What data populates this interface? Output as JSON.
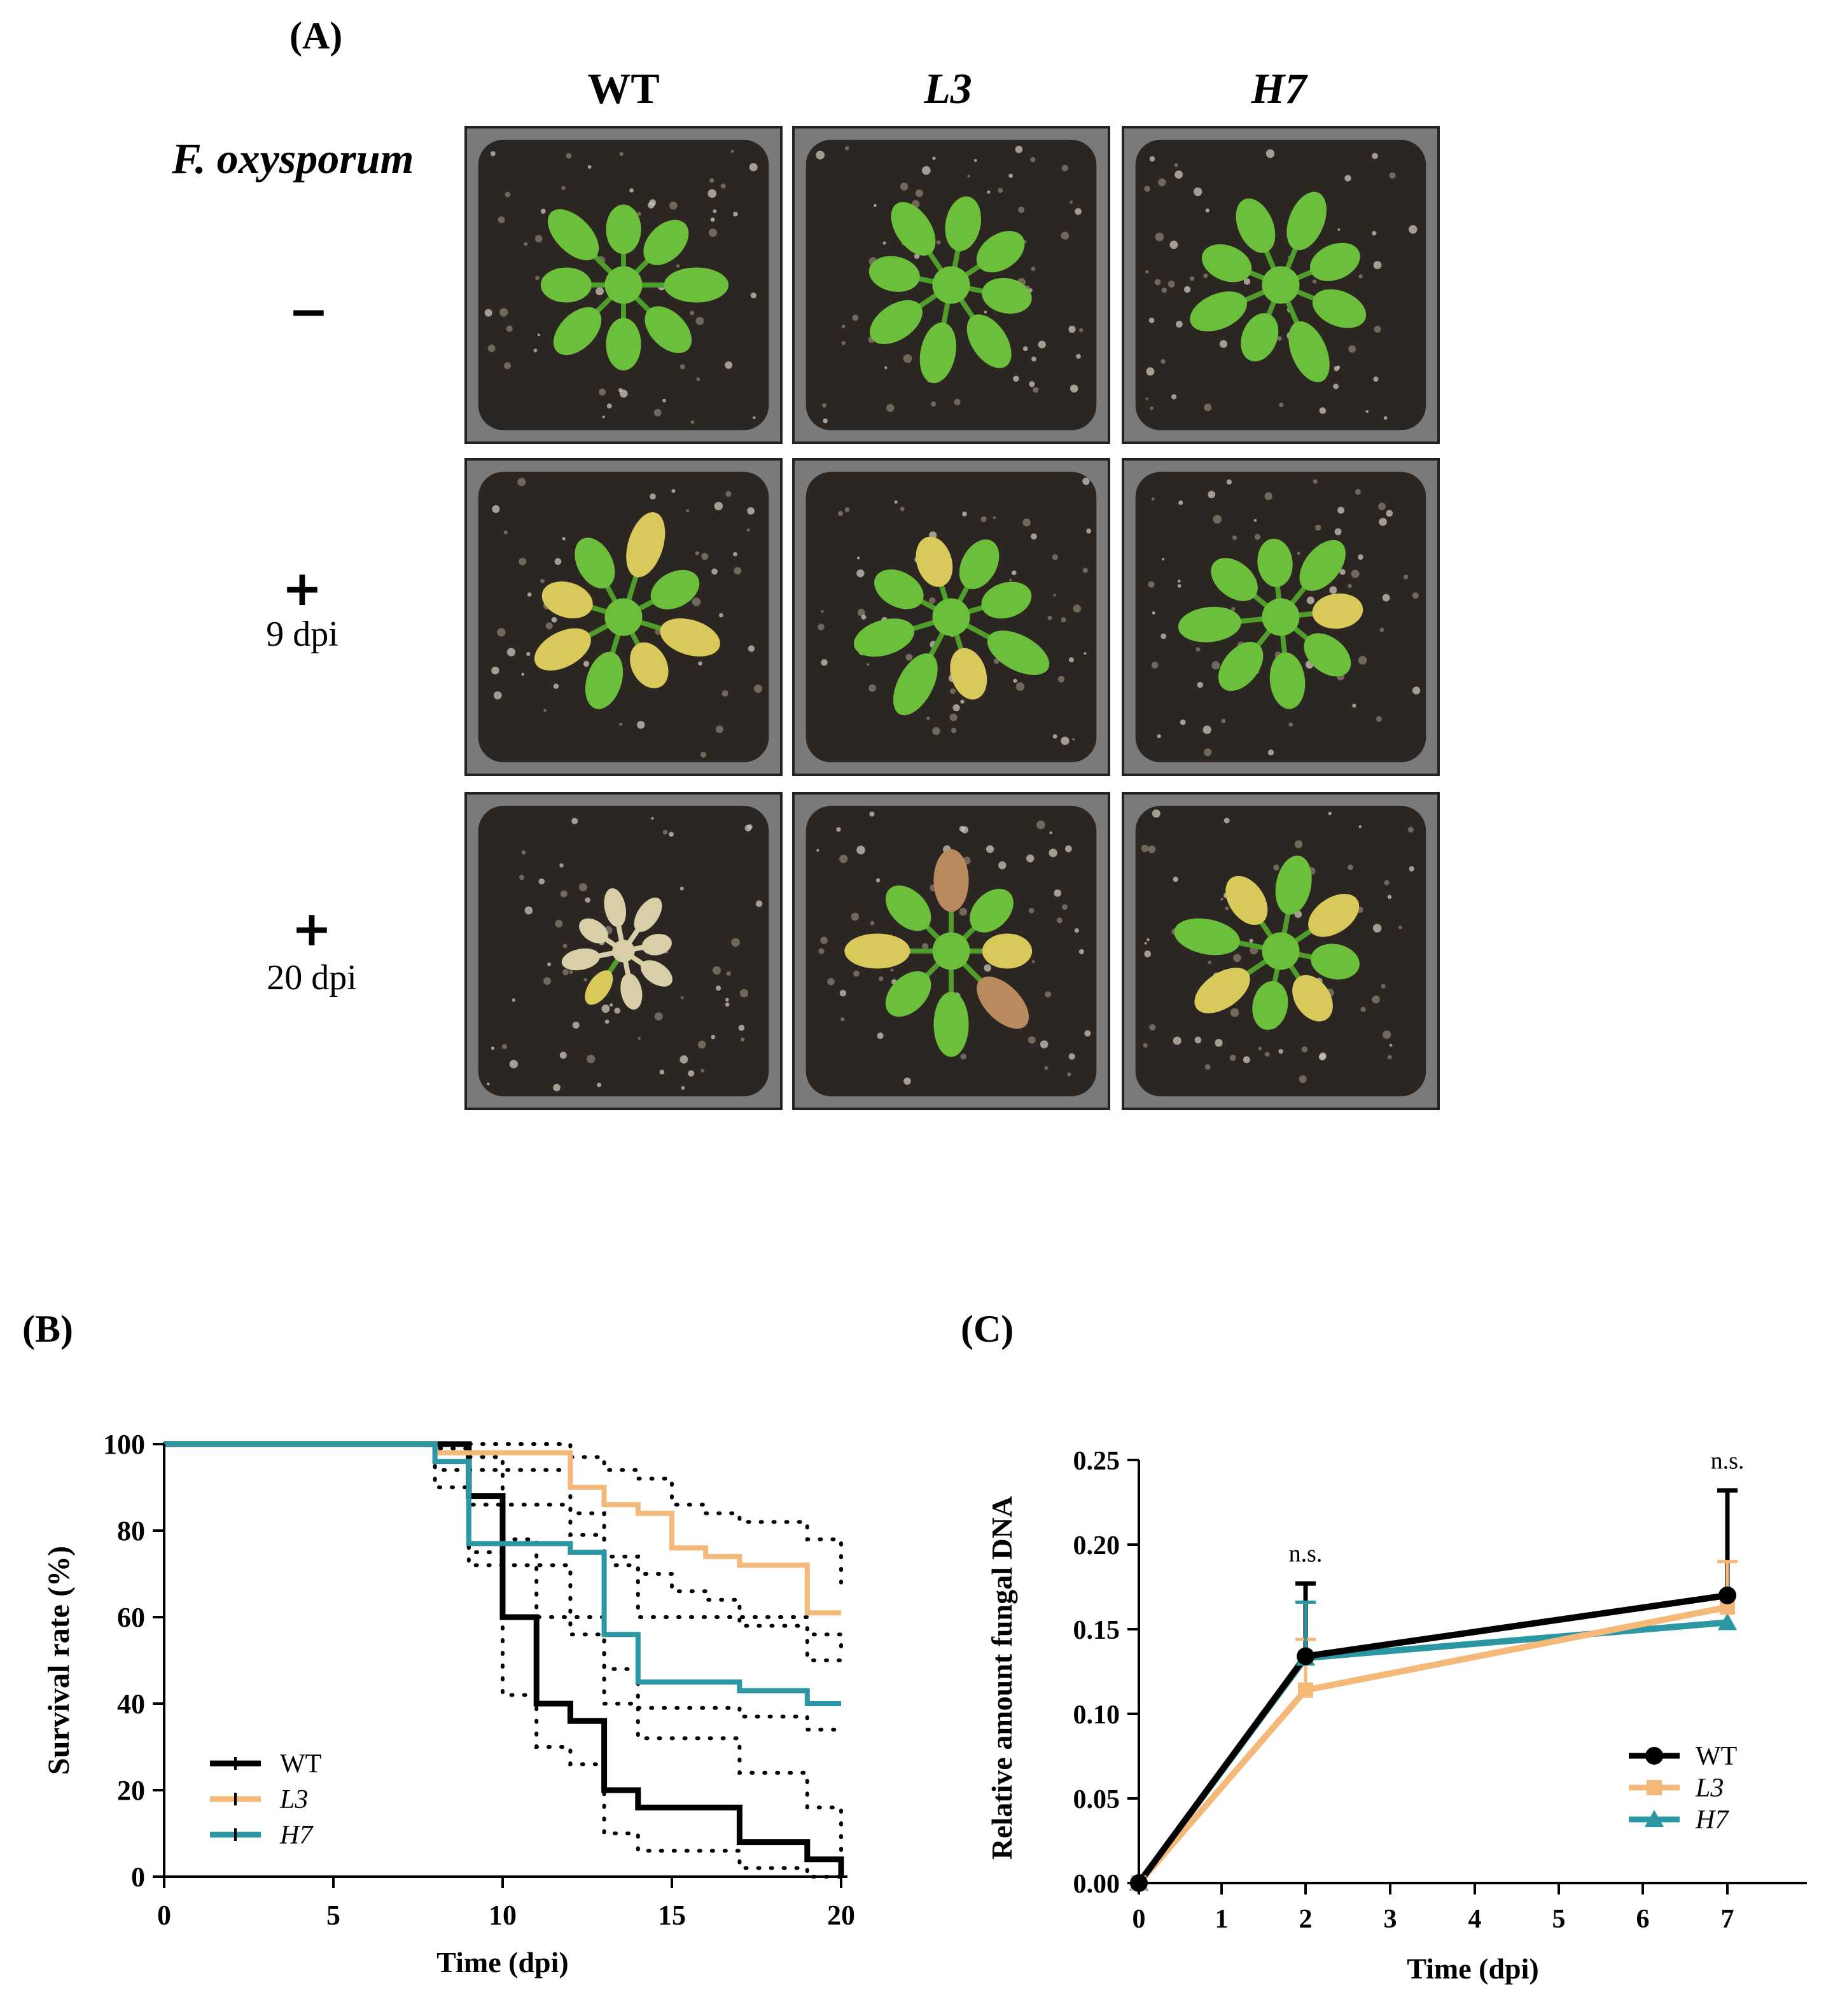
{
  "panel_a": {
    "label": "(A)",
    "columns": [
      "WT",
      "L3",
      "H7"
    ],
    "row_header": "F. oxysporum",
    "rows": [
      {
        "sign": "−",
        "timepoint": ""
      },
      {
        "sign": "+",
        "timepoint": "9 dpi"
      },
      {
        "sign": "+",
        "timepoint": "20 dpi"
      }
    ],
    "photo_colors": {
      "soil": "#2b2622",
      "tray": "#7a7a7a",
      "healthy_leaf": "#6cbf3a",
      "healthy_leaf_dark": "#4f9d2a",
      "chlorotic_leaf": "#d8c95a",
      "dead_leaf": "#d8cfa8",
      "reddish_leaf": "#b88a5e"
    }
  },
  "panel_b": {
    "label": "(B)",
    "chart_data": {
      "type": "line",
      "style": "kaplan-meier step survival curves with dotted 95% confidence bands",
      "xlabel": "Time (dpi)",
      "ylabel": "Survival rate (%)",
      "xlim": [
        0,
        20
      ],
      "ylim": [
        0,
        100
      ],
      "xticks": [
        "0",
        "5",
        "10",
        "15",
        "20"
      ],
      "yticks": [
        "0",
        "20",
        "40",
        "60",
        "80",
        "100"
      ],
      "legend_position": "bottom-left",
      "series": [
        {
          "name": "WT",
          "color": "#000000",
          "x": [
            0,
            9,
            10,
            11,
            12,
            13,
            14,
            17,
            19,
            20
          ],
          "y": [
            100,
            88,
            60,
            40,
            36,
            20,
            16,
            8,
            4,
            0
          ],
          "ci_upper": [
            100,
            97,
            78,
            60,
            56,
            40,
            32,
            24,
            16,
            6
          ],
          "ci_lower": [
            100,
            75,
            42,
            30,
            26,
            10,
            6,
            2,
            0,
            0
          ]
        },
        {
          "name": "L3",
          "color": "#f4b979",
          "x": [
            0,
            8,
            12,
            13,
            14,
            15,
            16,
            17,
            19,
            20
          ],
          "y": [
            100,
            98,
            90,
            86,
            84,
            76,
            74,
            72,
            61,
            61
          ],
          "ci_upper": [
            100,
            100,
            97,
            94,
            92,
            86,
            84,
            82,
            78,
            68
          ],
          "ci_lower": [
            100,
            94,
            79,
            74,
            70,
            66,
            64,
            60,
            50,
            50
          ]
        },
        {
          "name": "H7",
          "color": "#2a97a3",
          "x": [
            0,
            8,
            9,
            12,
            13,
            14,
            17,
            19,
            20
          ],
          "y": [
            100,
            96,
            77,
            75,
            56,
            45,
            43,
            40,
            40
          ],
          "ci_upper": [
            100,
            99,
            86,
            84,
            72,
            60,
            58,
            56,
            52
          ],
          "ci_lower": [
            100,
            90,
            72,
            60,
            48,
            39,
            37,
            34,
            34
          ]
        }
      ]
    }
  },
  "panel_c": {
    "label": "(C)",
    "chart_data": {
      "type": "line",
      "xlabel": "Time (dpi)",
      "ylabel": "Relative amount fungal DNA",
      "xlim": [
        0,
        8
      ],
      "ylim": [
        0,
        0.25
      ],
      "xtick_positions": [
        0,
        1,
        2,
        3,
        4,
        5,
        6,
        7
      ],
      "xtick_labels": [
        "0",
        "1",
        "2",
        "3",
        "4",
        "5",
        "6",
        "7"
      ],
      "yticks": [
        "0.00",
        "0.05",
        "0.10",
        "0.15",
        "0.20",
        "0.25"
      ],
      "legend_position": "bottom-right",
      "annotations": [
        {
          "x": 2,
          "y": 0.19,
          "text": "n.s."
        },
        {
          "x": 7,
          "y": 0.245,
          "text": "n.s."
        }
      ],
      "series": [
        {
          "name": "WT",
          "color": "#000000",
          "marker": "circle",
          "x": [
            0,
            2,
            7
          ],
          "y": [
            0.0,
            0.134,
            0.17
          ],
          "err": [
            0,
            0.043,
            0.062
          ]
        },
        {
          "name": "L3",
          "color": "#f4b979",
          "marker": "square",
          "x": [
            0,
            2,
            7
          ],
          "y": [
            0.0,
            0.114,
            0.163
          ],
          "err": [
            0,
            0.03,
            0.027
          ]
        },
        {
          "name": "H7",
          "color": "#2a97a3",
          "marker": "triangle",
          "x": [
            0,
            2,
            7
          ],
          "y": [
            0.0,
            0.133,
            0.154
          ],
          "err": [
            0,
            0.033,
            0
          ]
        }
      ]
    }
  }
}
